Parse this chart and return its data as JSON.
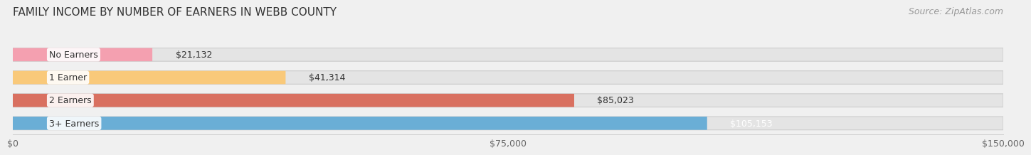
{
  "title": "FAMILY INCOME BY NUMBER OF EARNERS IN WEBB COUNTY",
  "source": "Source: ZipAtlas.com",
  "categories": [
    "No Earners",
    "1 Earner",
    "2 Earners",
    "3+ Earners"
  ],
  "values": [
    21132,
    41314,
    85023,
    105153
  ],
  "bar_colors": [
    "#f4a0b0",
    "#f9c97a",
    "#d97060",
    "#6aaed6"
  ],
  "value_labels": [
    "$21,132",
    "$41,314",
    "$85,023",
    "$105,153"
  ],
  "value_label_colors": [
    "#333333",
    "#333333",
    "#333333",
    "#ffffff"
  ],
  "xlim": [
    0,
    150000
  ],
  "xticks": [
    0,
    75000,
    150000
  ],
  "xtick_labels": [
    "$0",
    "$75,000",
    "$150,000"
  ],
  "bar_height": 0.58,
  "background_color": "#f0f0f0",
  "bar_bg_color": "#e4e4e4",
  "title_fontsize": 11,
  "source_fontsize": 9,
  "label_fontsize": 9,
  "value_fontsize": 9,
  "tick_fontsize": 9
}
